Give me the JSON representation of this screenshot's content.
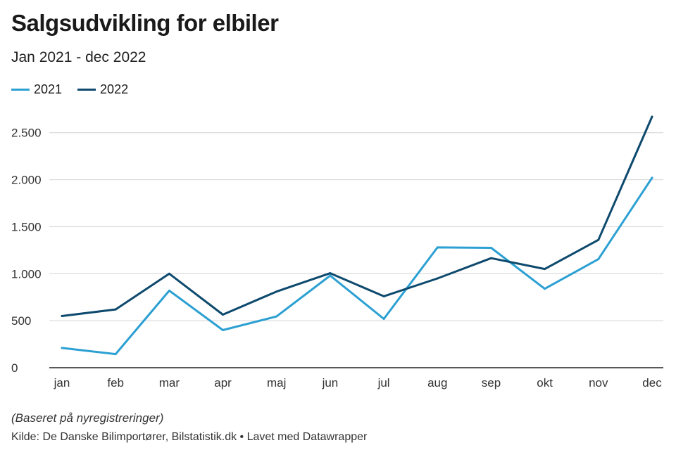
{
  "header": {
    "title": "Salgsudvikling for elbiler",
    "subtitle": "Jan 2021 - dec 2022"
  },
  "footer": {
    "note": "(Baseret på nyregistreringer)",
    "source": "Kilde: De Danske Bilimportører, Bilstatistik.dk • Lavet med Datawrapper"
  },
  "chart_data": {
    "type": "line",
    "title": "Salgsudvikling for elbiler",
    "subtitle": "Jan 2021 - dec 2022",
    "categories": [
      "jan",
      "feb",
      "mar",
      "apr",
      "maj",
      "jun",
      "jul",
      "aug",
      "sep",
      "okt",
      "nov",
      "dec"
    ],
    "series": [
      {
        "name": "2021",
        "color": "#2ca0d2",
        "values": [
          210,
          145,
          820,
          400,
          545,
          980,
          520,
          1280,
          1275,
          840,
          1155,
          2020
        ]
      },
      {
        "name": "2022",
        "color": "#0e4a6e",
        "values": [
          550,
          620,
          1000,
          565,
          810,
          1005,
          760,
          950,
          1165,
          1050,
          1360,
          2670
        ]
      }
    ],
    "ylim": [
      0,
      2700
    ],
    "yticks": [
      0,
      500,
      1000,
      1500,
      2000,
      2500
    ],
    "ytick_labels": [
      "0",
      "500",
      "1.000",
      "1.500",
      "2.000",
      "2.500"
    ],
    "legend": "top-left",
    "grid": true
  }
}
